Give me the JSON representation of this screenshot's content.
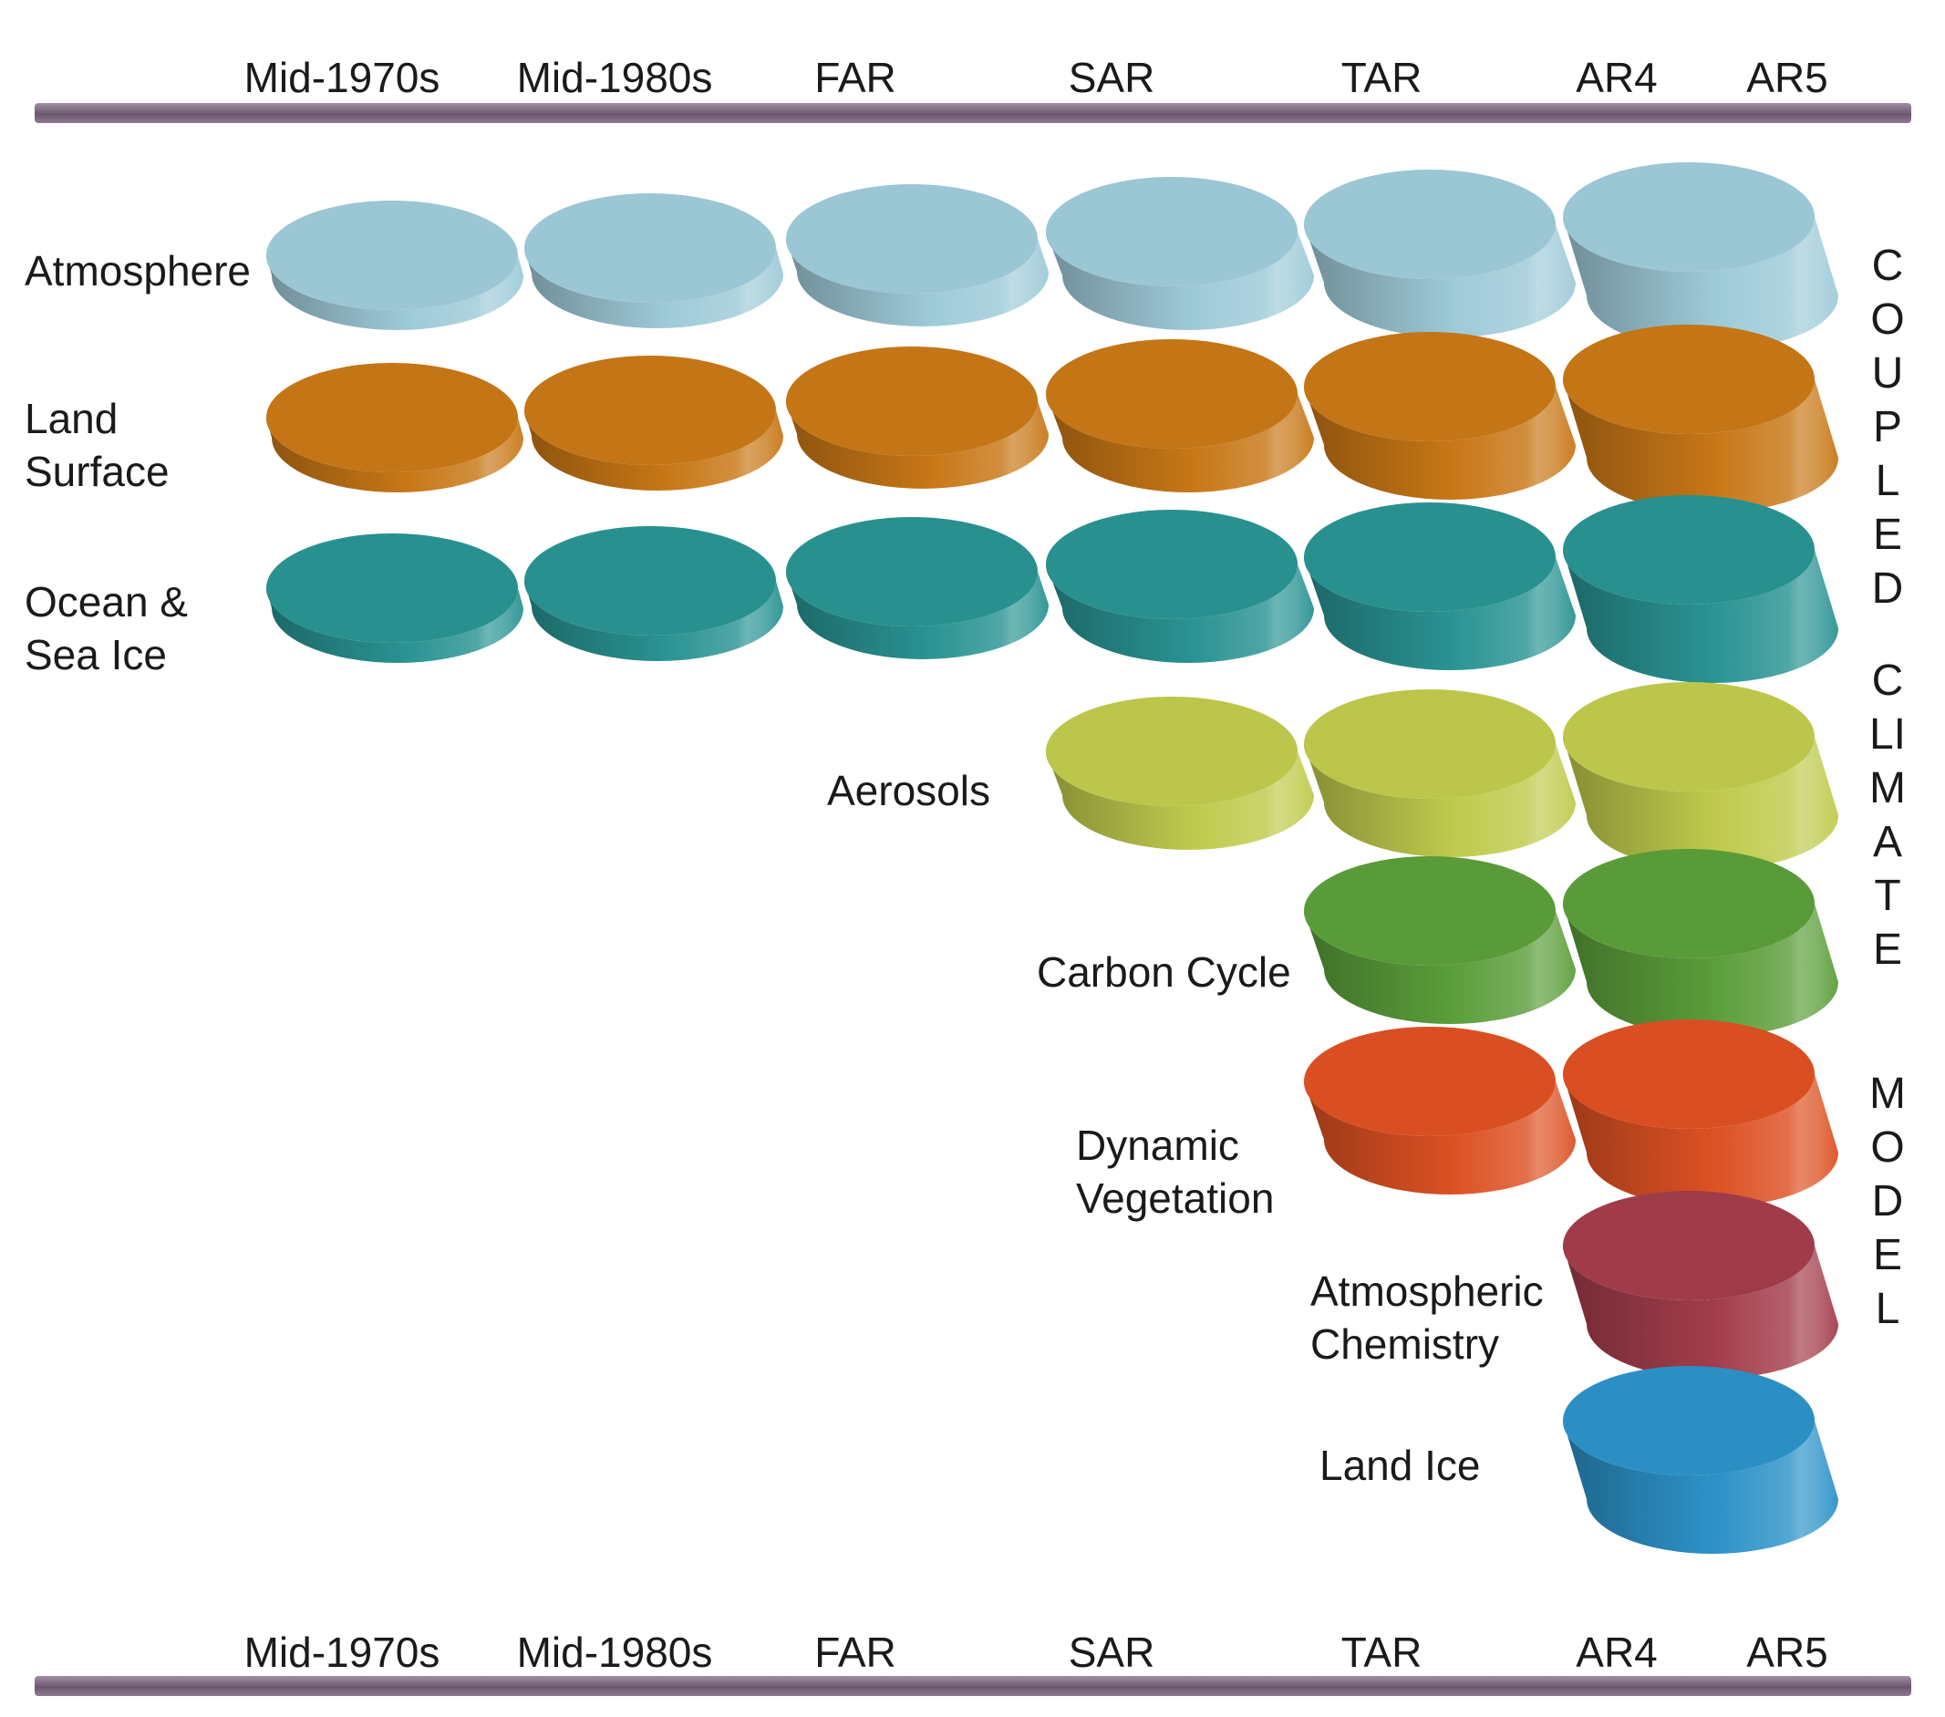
{
  "eras": [
    "Mid-1970s",
    "Mid-1980s",
    "FAR",
    "SAR",
    "TAR",
    "AR4",
    "AR5"
  ],
  "components": [
    {
      "name": "Atmosphere",
      "color": "#9ecad8",
      "lines": [
        "Atmosphere"
      ]
    },
    {
      "name": "Land Surface",
      "color": "#c87716",
      "lines": [
        "Land",
        "Surface"
      ]
    },
    {
      "name": "Ocean & Sea Ice",
      "color": "#2a9393",
      "lines": [
        "Ocean &",
        "Sea Ice"
      ]
    },
    {
      "name": "Aerosols",
      "color": "#bfca4c",
      "lines": [
        "Aerosols"
      ]
    },
    {
      "name": "Carbon Cycle",
      "color": "#5b9e3a",
      "lines": [
        "Carbon Cycle"
      ]
    },
    {
      "name": "Dynamic Vegetation",
      "color": "#dd5123",
      "lines": [
        "Dynamic",
        "Vegetation"
      ]
    },
    {
      "name": "Atmospheric Chemistry",
      "color": "#a33d4c",
      "lines": [
        "Atmospheric",
        "Chemistry"
      ]
    },
    {
      "name": "Land Ice",
      "color": "#2c92c8",
      "lines": [
        "Land Ice"
      ]
    }
  ],
  "inclusion": [
    {
      "component": "Atmosphere",
      "eras": [
        "Mid-1970s",
        "Mid-1980s",
        "FAR",
        "SAR",
        "TAR",
        "AR4"
      ]
    },
    {
      "component": "Land Surface",
      "eras": [
        "Mid-1970s",
        "Mid-1980s",
        "FAR",
        "SAR",
        "TAR",
        "AR4"
      ]
    },
    {
      "component": "Ocean & Sea Ice",
      "eras": [
        "Mid-1970s",
        "Mid-1980s",
        "FAR",
        "SAR",
        "TAR",
        "AR4"
      ]
    },
    {
      "component": "Aerosols",
      "eras": [
        "SAR",
        "TAR",
        "AR4"
      ]
    },
    {
      "component": "Carbon Cycle",
      "eras": [
        "TAR",
        "AR4"
      ]
    },
    {
      "component": "Dynamic Vegetation",
      "eras": [
        "TAR",
        "AR4"
      ]
    },
    {
      "component": "Atmospheric Chemistry",
      "eras": [
        "AR4"
      ]
    },
    {
      "component": "Land Ice",
      "eras": [
        "AR4"
      ]
    }
  ],
  "vertical_label": [
    "COUPLED",
    "CLIMATE",
    "MODEL"
  ]
}
